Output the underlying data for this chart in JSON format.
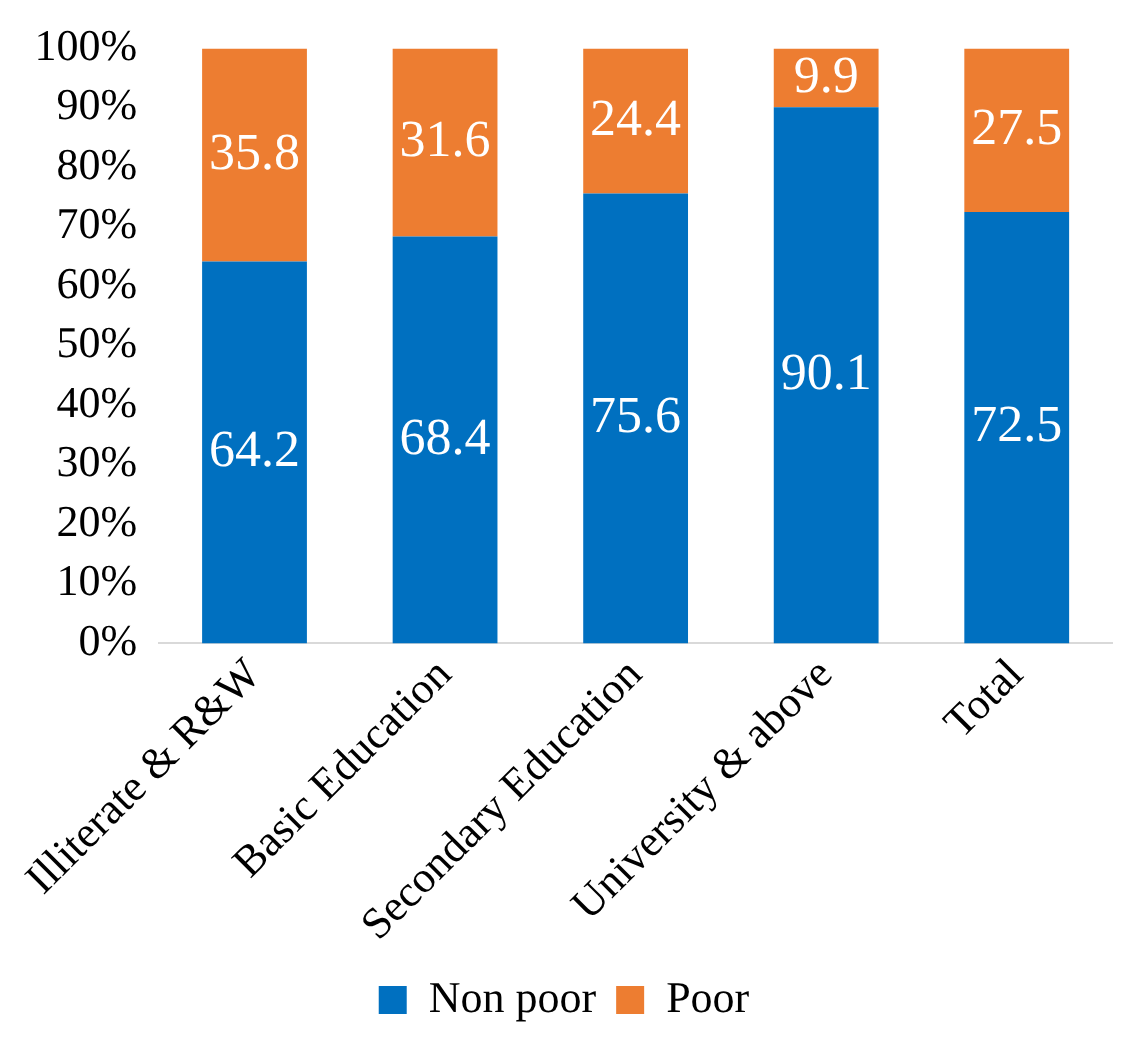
{
  "chart_data": {
    "type": "bar",
    "stacked": true,
    "categories": [
      "Illiterate & R&W",
      "Basic Education",
      "Secondary Education",
      "University & above",
      "Total"
    ],
    "series": [
      {
        "name": "Non poor",
        "color": "#0070c0",
        "values": [
          64.2,
          68.4,
          75.6,
          90.1,
          72.5
        ]
      },
      {
        "name": "Poor",
        "color": "#ed7d31",
        "values": [
          35.8,
          31.6,
          24.4,
          9.9,
          27.5
        ]
      }
    ],
    "ylim": [
      0,
      100
    ],
    "yticks": [
      {
        "value": 0,
        "label": "0%"
      },
      {
        "value": 10,
        "label": "10%"
      },
      {
        "value": 20,
        "label": "20%"
      },
      {
        "value": 30,
        "label": "30%"
      },
      {
        "value": 40,
        "label": "40%"
      },
      {
        "value": 50,
        "label": "50%"
      },
      {
        "value": 60,
        "label": "60%"
      },
      {
        "value": 70,
        "label": "70%"
      },
      {
        "value": 80,
        "label": "80%"
      },
      {
        "value": 90,
        "label": "90%"
      },
      {
        "value": 100,
        "label": "100%"
      }
    ],
    "data_labels": true,
    "legend": "bottom",
    "grid": false
  }
}
